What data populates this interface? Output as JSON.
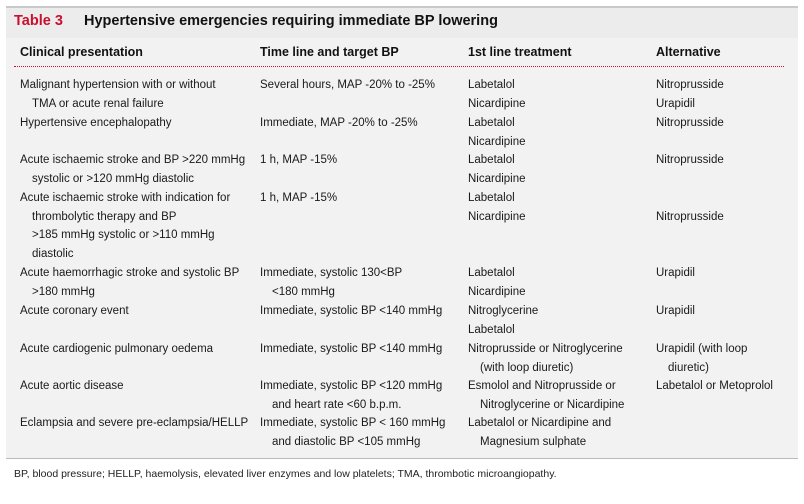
{
  "table": {
    "label": "Table 3",
    "title": "Hypertensive emergencies requiring immediate BP lowering",
    "columns": [
      "Clinical presentation",
      "Time line and target BP",
      "1st line treatment",
      "Alternative"
    ],
    "rows": [
      {
        "presentation": [
          "Malignant hypertension with or without",
          "TMA or acute renal failure"
        ],
        "target": [
          "Several hours, MAP -20% to -25%"
        ],
        "first_line": [
          "Labetalol",
          "Nicardipine"
        ],
        "alternative": [
          "Nitroprusside",
          "Urapidil"
        ]
      },
      {
        "presentation": [
          "Hypertensive encephalopathy"
        ],
        "target": [
          "Immediate, MAP -20% to -25%"
        ],
        "first_line": [
          "Labetalol",
          "Nicardipine"
        ],
        "alternative": [
          "Nitroprusside"
        ]
      },
      {
        "presentation": [
          "Acute ischaemic stroke and BP >220 mmHg",
          "systolic or >120 mmHg diastolic"
        ],
        "target": [
          "1 h, MAP -15%"
        ],
        "first_line": [
          "Labetalol",
          "Nicardipine"
        ],
        "alternative": [
          "Nitroprusside"
        ]
      },
      {
        "presentation": [
          "Acute ischaemic stroke with indication for",
          "thrombolytic therapy and BP",
          ">185 mmHg systolic or >110 mmHg",
          "diastolic"
        ],
        "target": [
          "1 h, MAP -15%"
        ],
        "first_line": [
          "Labetalol",
          "Nicardipine"
        ],
        "alternative": [
          "",
          "Nitroprusside"
        ]
      },
      {
        "presentation": [
          "Acute haemorrhagic stroke and systolic BP",
          ">180 mmHg"
        ],
        "target": [
          "Immediate, systolic 130<BP",
          "<180 mmHg"
        ],
        "first_line": [
          "Labetalol",
          "Nicardipine"
        ],
        "alternative": [
          "Urapidil"
        ]
      },
      {
        "presentation": [
          "Acute coronary event"
        ],
        "target": [
          "Immediate, systolic BP <140 mmHg"
        ],
        "first_line": [
          "Nitroglycerine",
          "Labetalol"
        ],
        "alternative": [
          "Urapidil"
        ]
      },
      {
        "presentation": [
          "Acute cardiogenic pulmonary oedema"
        ],
        "target": [
          "Immediate, systolic BP <140 mmHg"
        ],
        "first_line": [
          "Nitroprusside or Nitroglycerine",
          "(with loop diuretic)"
        ],
        "alternative": [
          "Urapidil (with loop",
          "diuretic)"
        ]
      },
      {
        "presentation": [
          "Acute aortic disease"
        ],
        "target": [
          "Immediate, systolic BP <120 mmHg",
          "and heart rate <60 b.p.m."
        ],
        "first_line": [
          "Esmolol and Nitroprusside or",
          "Nitroglycerine or Nicardipine"
        ],
        "alternative": [
          "Labetalol or Metoprolol"
        ]
      },
      {
        "presentation": [
          "Eclampsia and severe pre-eclampsia/HELLP"
        ],
        "target": [
          "Immediate, systolic BP < 160 mmHg",
          "and diastolic BP <105 mmHg"
        ],
        "first_line": [
          "Labetalol or Nicardipine and",
          "Magnesium sulphate"
        ],
        "alternative": []
      }
    ],
    "footnote": "BP, blood pressure; HELLP, haemolysis, elevated liver enzymes and low platelets; TMA, thrombotic microangiopathy."
  }
}
